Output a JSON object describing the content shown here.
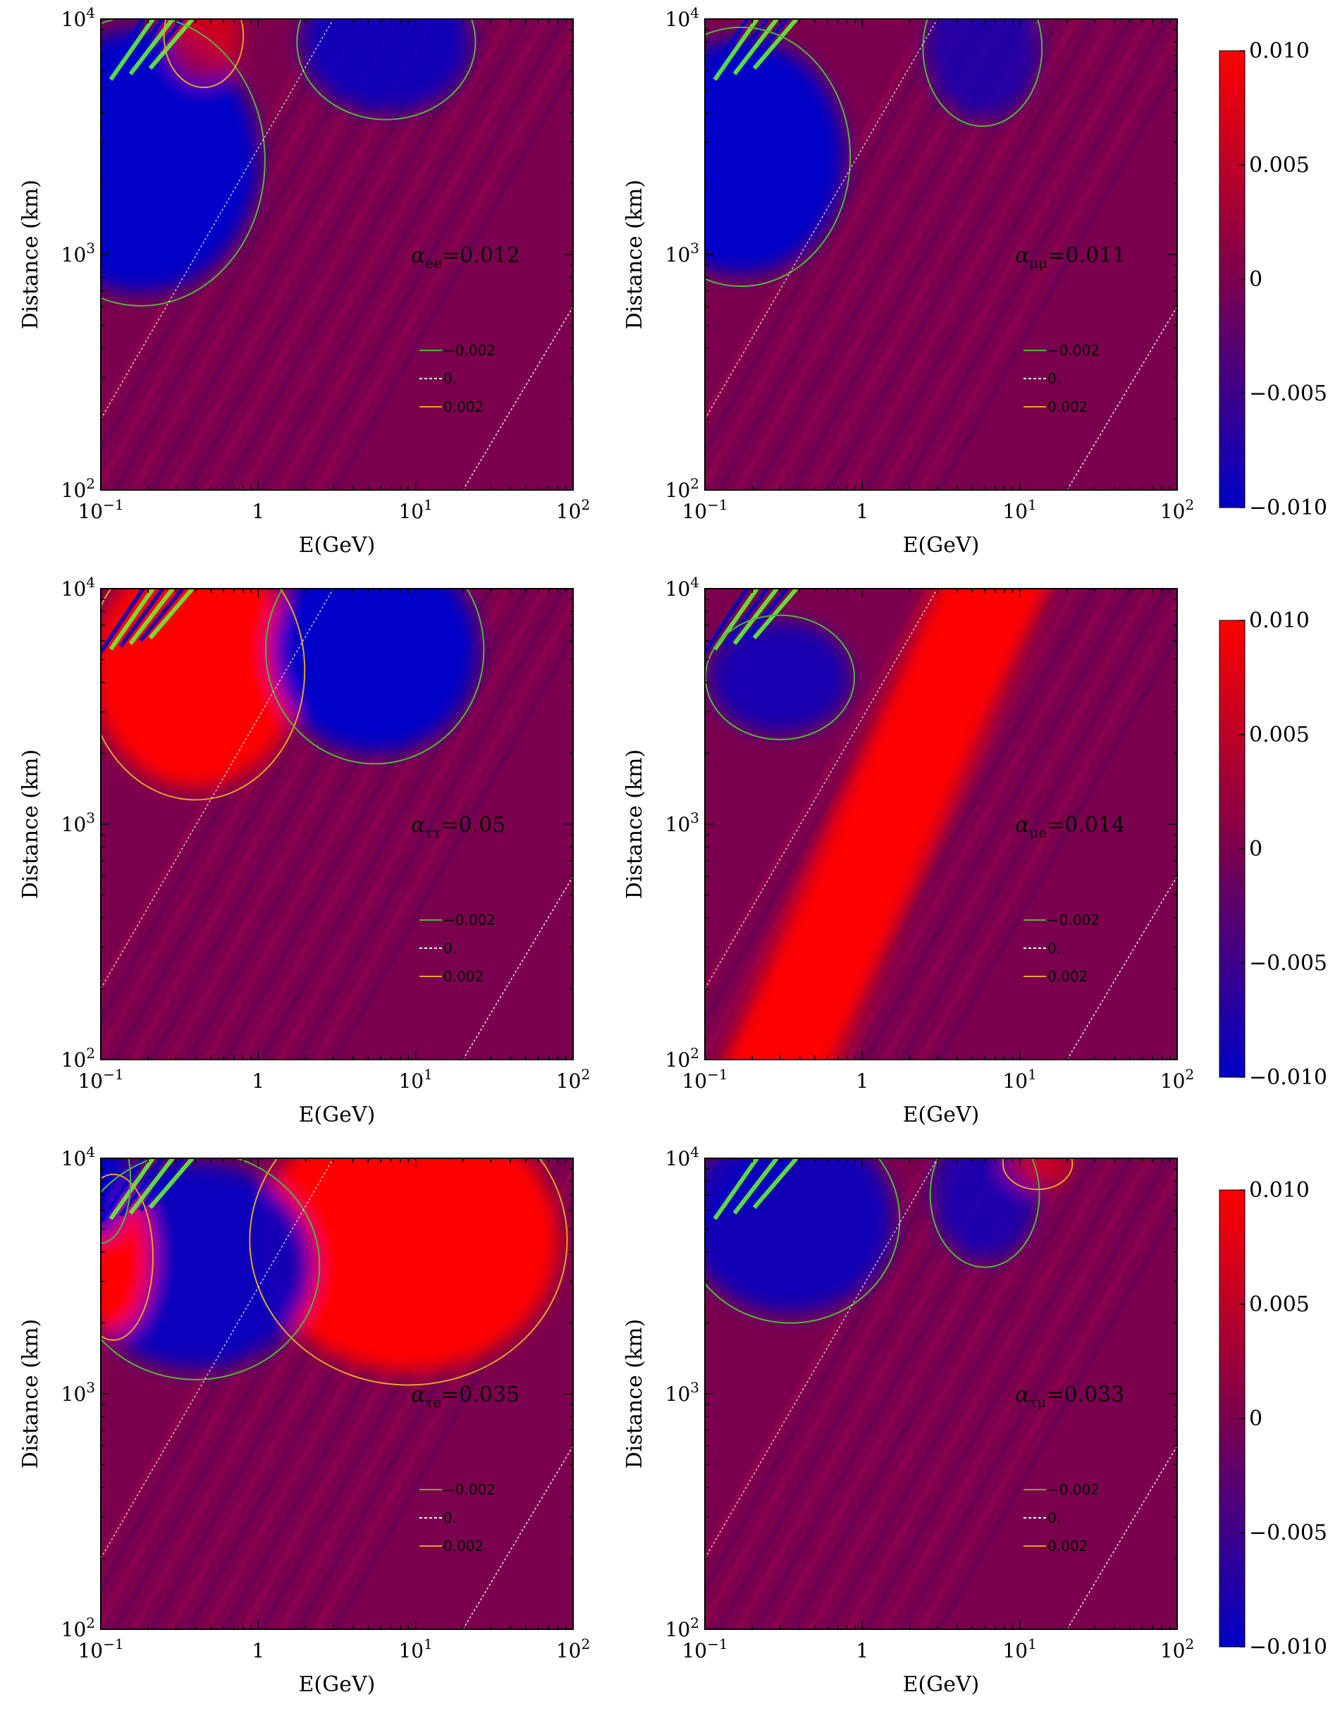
{
  "chart_data": [
    {
      "type": "heatmap",
      "id": "ee",
      "annotation": {
        "symbol": "α",
        "subscript": "ee",
        "value": "=0.012"
      },
      "xlabel": "E(GeV)",
      "ylabel": "Distance (km)",
      "x_scale": "log",
      "y_scale": "log",
      "xlim": [
        0.1,
        100
      ],
      "ylim": [
        100,
        10000
      ],
      "x_ticks": [
        {
          "base": "10",
          "exp": "−1"
        },
        {
          "base": "1",
          "exp": ""
        },
        {
          "base": "10",
          "exp": "1"
        },
        {
          "base": "10",
          "exp": "2"
        }
      ],
      "y_ticks": [
        {
          "base": "10",
          "exp": "2"
        },
        {
          "base": "10",
          "exp": "3"
        },
        {
          "base": "10",
          "exp": "4"
        }
      ],
      "legend": [
        "−0.002",
        "0.",
        "0.002"
      ],
      "features": [
        {
          "kind": "blob",
          "polarity": "negative",
          "E": 0.18,
          "L": 2500,
          "strength": 1.0,
          "wE": 0.25,
          "wL": 0.28
        },
        {
          "kind": "blob",
          "polarity": "negative",
          "E": 6.5,
          "L": 8000,
          "strength": 0.85,
          "wE": 0.18,
          "wL": 0.15
        },
        {
          "kind": "blob",
          "polarity": "positive",
          "E": 0.45,
          "L": 8500,
          "strength": 0.6,
          "wE": 0.08,
          "wL": 0.1
        }
      ]
    },
    {
      "type": "heatmap",
      "id": "mumu",
      "annotation": {
        "symbol": "α",
        "subscript": "μμ",
        "value": "=0.011"
      },
      "xlabel": "E(GeV)",
      "ylabel": "Distance (km)",
      "x_scale": "log",
      "y_scale": "log",
      "xlim": [
        0.1,
        100
      ],
      "ylim": [
        100,
        10000
      ],
      "x_ticks": [
        {
          "base": "10",
          "exp": "−1"
        },
        {
          "base": "1",
          "exp": ""
        },
        {
          "base": "10",
          "exp": "1"
        },
        {
          "base": "10",
          "exp": "2"
        }
      ],
      "y_ticks": [
        {
          "base": "10",
          "exp": "2"
        },
        {
          "base": "10",
          "exp": "3"
        },
        {
          "base": "10",
          "exp": "4"
        }
      ],
      "legend": [
        "−0.002",
        "0.",
        "0.002"
      ],
      "features": [
        {
          "kind": "blob",
          "polarity": "negative",
          "E": 0.17,
          "L": 2600,
          "strength": 1.0,
          "wE": 0.22,
          "wL": 0.25
        },
        {
          "kind": "blob",
          "polarity": "negative",
          "E": 5.8,
          "L": 7500,
          "strength": 0.7,
          "wE": 0.12,
          "wL": 0.15
        }
      ]
    },
    {
      "type": "heatmap",
      "id": "tautau",
      "annotation": {
        "symbol": "α",
        "subscript": "ττ",
        "value": "=0.05"
      },
      "xlabel": "E(GeV)",
      "ylabel": "Distance (km)",
      "x_scale": "log",
      "y_scale": "log",
      "xlim": [
        0.1,
        100
      ],
      "ylim": [
        100,
        10000
      ],
      "x_ticks": [
        {
          "base": "10",
          "exp": "−1"
        },
        {
          "base": "1",
          "exp": ""
        },
        {
          "base": "10",
          "exp": "1"
        },
        {
          "base": "10",
          "exp": "2"
        }
      ],
      "y_ticks": [
        {
          "base": "10",
          "exp": "2"
        },
        {
          "base": "10",
          "exp": "3"
        },
        {
          "base": "10",
          "exp": "4"
        }
      ],
      "legend": [
        "−0.002",
        "0.",
        "0.002"
      ],
      "features": [
        {
          "kind": "blob",
          "polarity": "positive",
          "E": 0.4,
          "L": 4500,
          "strength": 1.0,
          "wE": 0.22,
          "wL": 0.25
        },
        {
          "kind": "blob",
          "polarity": "negative",
          "E": 5.5,
          "L": 5500,
          "strength": 1.0,
          "wE": 0.22,
          "wL": 0.22
        }
      ]
    },
    {
      "type": "heatmap",
      "id": "mue",
      "annotation": {
        "symbol": "α",
        "subscript": "μe",
        "value": "=0.014"
      },
      "xlabel": "E(GeV)",
      "ylabel": "Distance (km)",
      "x_scale": "log",
      "y_scale": "log",
      "xlim": [
        0.1,
        100
      ],
      "ylim": [
        100,
        10000
      ],
      "x_ticks": [
        {
          "base": "10",
          "exp": "−1"
        },
        {
          "base": "1",
          "exp": ""
        },
        {
          "base": "10",
          "exp": "1"
        },
        {
          "base": "10",
          "exp": "2"
        }
      ],
      "y_ticks": [
        {
          "base": "10",
          "exp": "2"
        },
        {
          "base": "10",
          "exp": "3"
        },
        {
          "base": "10",
          "exp": "4"
        }
      ],
      "legend": [
        "−0.002",
        "0.",
        "0.002"
      ],
      "features": [
        {
          "kind": "band",
          "polarity": "positive",
          "slope": 1.0,
          "E_at_Lmin": 0.25,
          "E_at_Lmax": 8.0,
          "width": 0.22,
          "strength": 1.0
        },
        {
          "kind": "blob",
          "polarity": "negative",
          "E": 0.3,
          "L": 4200,
          "strength": 0.8,
          "wE": 0.15,
          "wL": 0.12
        }
      ]
    },
    {
      "type": "heatmap",
      "id": "taue",
      "annotation": {
        "symbol": "α",
        "subscript": "τe",
        "value": "=0.035"
      },
      "xlabel": "E(GeV)",
      "ylabel": "Distance (km)",
      "x_scale": "log",
      "y_scale": "log",
      "xlim": [
        0.1,
        100
      ],
      "ylim": [
        100,
        10000
      ],
      "x_ticks": [
        {
          "base": "10",
          "exp": "−1"
        },
        {
          "base": "1",
          "exp": ""
        },
        {
          "base": "10",
          "exp": "1"
        },
        {
          "base": "10",
          "exp": "2"
        }
      ],
      "y_ticks": [
        {
          "base": "10",
          "exp": "2"
        },
        {
          "base": "10",
          "exp": "3"
        },
        {
          "base": "10",
          "exp": "4"
        }
      ],
      "legend": [
        "−0.002",
        "0.",
        "0.002"
      ],
      "features": [
        {
          "kind": "blob",
          "polarity": "positive",
          "E": 9.0,
          "L": 4500,
          "strength": 1.0,
          "wE": 0.32,
          "wL": 0.28
        },
        {
          "kind": "blob",
          "polarity": "negative",
          "E": 0.4,
          "L": 3500,
          "strength": 0.9,
          "wE": 0.25,
          "wL": 0.22
        },
        {
          "kind": "blob",
          "polarity": "positive",
          "E": 0.12,
          "L": 3800,
          "strength": 1.0,
          "wE": 0.08,
          "wL": 0.16
        },
        {
          "kind": "blob",
          "polarity": "negative",
          "E": 0.1,
          "L": 8000,
          "strength": 1.0,
          "wE": 0.06,
          "wL": 0.12
        }
      ]
    },
    {
      "type": "heatmap",
      "id": "taumu",
      "annotation": {
        "symbol": "α",
        "subscript": "τμ",
        "value": "=0.033"
      },
      "xlabel": "E(GeV)",
      "ylabel": "Distance (km)",
      "x_scale": "log",
      "y_scale": "log",
      "xlim": [
        0.1,
        100
      ],
      "ylim": [
        100,
        10000
      ],
      "x_ticks": [
        {
          "base": "10",
          "exp": "−1"
        },
        {
          "base": "1",
          "exp": ""
        },
        {
          "base": "10",
          "exp": "1"
        },
        {
          "base": "10",
          "exp": "2"
        }
      ],
      "y_ticks": [
        {
          "base": "10",
          "exp": "2"
        },
        {
          "base": "10",
          "exp": "3"
        },
        {
          "base": "10",
          "exp": "4"
        }
      ],
      "legend": [
        "−0.002",
        "0.",
        "0.002"
      ],
      "features": [
        {
          "kind": "blob",
          "polarity": "negative",
          "E": 0.35,
          "L": 5500,
          "strength": 0.85,
          "wE": 0.22,
          "wL": 0.2
        },
        {
          "kind": "blob",
          "polarity": "negative",
          "E": 6.0,
          "L": 7000,
          "strength": 0.75,
          "wE": 0.11,
          "wL": 0.14
        },
        {
          "kind": "blob",
          "polarity": "positive",
          "E": 13.0,
          "L": 9500,
          "strength": 0.6,
          "wE": 0.07,
          "wL": 0.05
        }
      ]
    }
  ],
  "colorbar": {
    "labels": [
      "0.010",
      "0.005",
      "0",
      "−0.005",
      "−0.010"
    ],
    "values": [
      0.01,
      0.005,
      0,
      -0.005,
      -0.01
    ],
    "range": [
      -0.01,
      0.01
    ],
    "colors": {
      "top": "#ff0000",
      "mid": "#7b004e",
      "bottom": "#0000c8"
    }
  },
  "colors": {
    "background": "#7b004e",
    "positive": "#ff0000",
    "negative": "#0000c8",
    "contour_neg": "#55b43c",
    "contour_zero": "#ffffff",
    "contour_pos": "#e2a52a",
    "fringe_green": "#66ff33"
  }
}
